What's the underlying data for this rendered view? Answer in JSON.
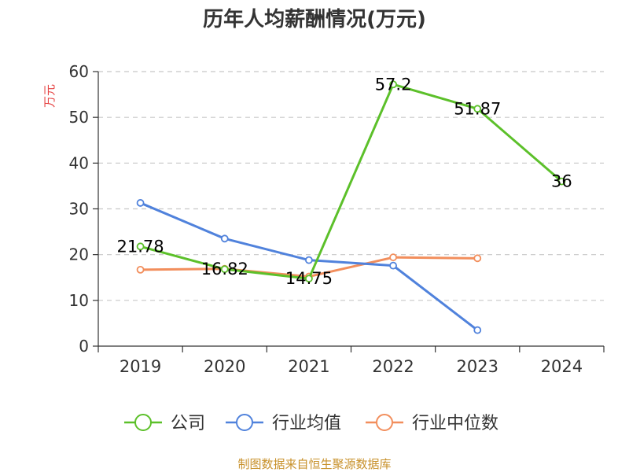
{
  "chart_data": {
    "type": "line",
    "title": "历年人均薪酬情况(万元)",
    "ylabel": "万元",
    "xlabel": "",
    "categories": [
      "2019",
      "2020",
      "2021",
      "2022",
      "2023",
      "2024"
    ],
    "ylim": [
      0,
      60
    ],
    "yticks": [
      0,
      10,
      20,
      30,
      40,
      50,
      60
    ],
    "grid": true,
    "legend_position": "bottom",
    "series": [
      {
        "name": "公司",
        "color": "#5cc02a",
        "values": [
          21.78,
          16.82,
          14.75,
          57.2,
          51.87,
          36
        ],
        "labels": [
          "21.78",
          "16.82",
          "14.75",
          "57.2",
          "51.87",
          "36"
        ]
      },
      {
        "name": "行业均值",
        "color": "#5082dc",
        "values": [
          31.3,
          23.5,
          18.8,
          17.6,
          3.5,
          null
        ]
      },
      {
        "name": "行业中位数",
        "color": "#f28e5c",
        "values": [
          16.7,
          16.9,
          15.2,
          19.4,
          19.2,
          null
        ]
      }
    ],
    "source": "制图数据来自恒生聚源数据库"
  }
}
